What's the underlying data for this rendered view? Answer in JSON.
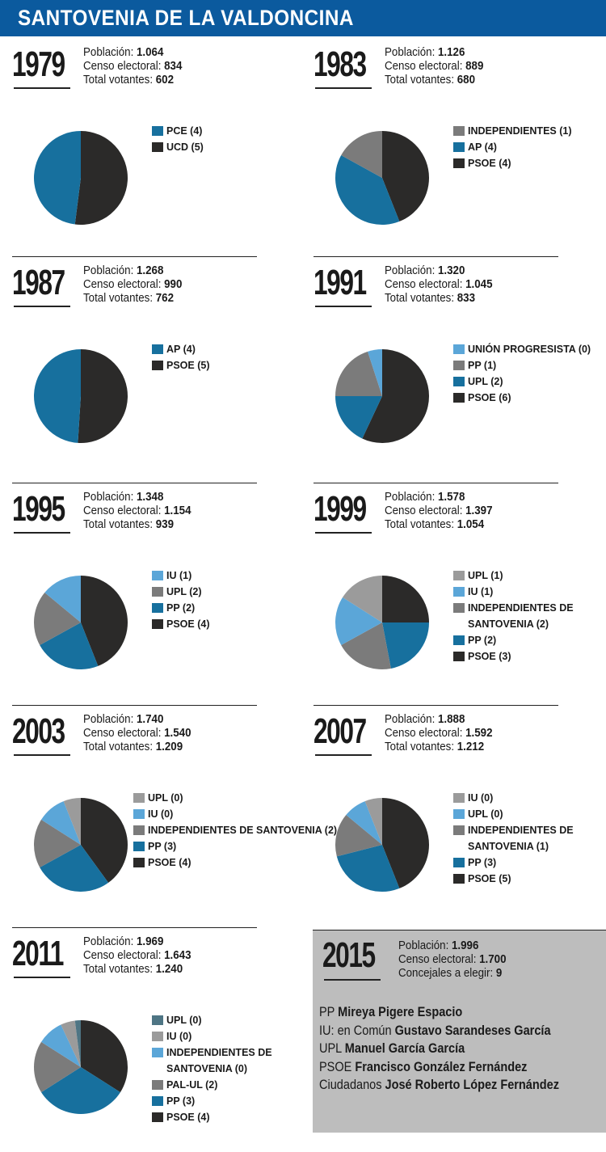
{
  "title": "SANTOVENIA DE LA VALDONCINA",
  "colors": {
    "dark": "#2b2a29",
    "blue": "#17709e",
    "gray": "#7b7b7b",
    "lightblue": "#5ba6d8",
    "lightgray": "#9b9b9b",
    "slate": "#4e7584"
  },
  "labels": {
    "poblacion": "Población: ",
    "censo": "Censo electoral: ",
    "votantes": "Total votantes: ",
    "concejales": "Concejales a elegir: "
  },
  "chart_data": [
    {
      "type": "pie",
      "title": "1979",
      "poblacion": "1.064",
      "censo": "834",
      "votantes": "602",
      "slices": [
        {
          "label": "PCE (4)",
          "value": 48,
          "color": "blue"
        },
        {
          "label": "UCD (5)",
          "value": 52,
          "color": "dark"
        }
      ]
    },
    {
      "type": "pie",
      "title": "1983",
      "poblacion": "1.126",
      "censo": "889",
      "votantes": "680",
      "slices": [
        {
          "label": "INDEPENDIENTES (1)",
          "value": 17,
          "color": "gray"
        },
        {
          "label": "AP (4)",
          "value": 39,
          "color": "blue"
        },
        {
          "label": "PSOE (4)",
          "value": 44,
          "color": "dark"
        }
      ]
    },
    {
      "type": "pie",
      "title": "1987",
      "poblacion": "1.268",
      "censo": "990",
      "votantes": "762",
      "slices": [
        {
          "label": "AP (4)",
          "value": 49,
          "color": "blue"
        },
        {
          "label": "PSOE (5)",
          "value": 51,
          "color": "dark"
        }
      ]
    },
    {
      "type": "pie",
      "title": "1991",
      "poblacion": "1.320",
      "censo": "1.045",
      "votantes": "833",
      "slices": [
        {
          "label": "UNIÓN PROGRESISTA (0)",
          "value": 5,
          "color": "lightblue"
        },
        {
          "label": "PP (1)",
          "value": 20,
          "color": "gray"
        },
        {
          "label": "UPL (2)",
          "value": 18,
          "color": "blue"
        },
        {
          "label": "PSOE (6)",
          "value": 57,
          "color": "dark"
        }
      ]
    },
    {
      "type": "pie",
      "title": "1995",
      "poblacion": "1.348",
      "censo": "1.154",
      "votantes": "939",
      "slices": [
        {
          "label": "IU (1)",
          "value": 14,
          "color": "lightblue"
        },
        {
          "label": "UPL (2)",
          "value": 19,
          "color": "gray"
        },
        {
          "label": "PP (2)",
          "value": 23,
          "color": "blue"
        },
        {
          "label": "PSOE (4)",
          "value": 44,
          "color": "dark"
        }
      ]
    },
    {
      "type": "pie",
      "title": "1999",
      "poblacion": "1.578",
      "censo": "1.397",
      "votantes": "1.054",
      "slices": [
        {
          "label": "UPL (1)",
          "value": 16,
          "color": "lightgray"
        },
        {
          "label": "IU (1)",
          "value": 17,
          "color": "lightblue"
        },
        {
          "label": "INDEPENDIENTES DE SANTOVENIA (2)",
          "value": 20,
          "color": "gray"
        },
        {
          "label": "PP (2)",
          "value": 22,
          "color": "blue"
        },
        {
          "label": "PSOE (3)",
          "value": 25,
          "color": "dark"
        }
      ]
    },
    {
      "type": "pie",
      "title": "2003",
      "poblacion": "1.740",
      "censo": "1.540",
      "votantes": "1.209",
      "slices": [
        {
          "label": "UPL (0)",
          "value": 6,
          "color": "lightgray"
        },
        {
          "label": "IU (0)",
          "value": 10,
          "color": "lightblue"
        },
        {
          "label": "INDEPENDIENTES DE SANTOVENIA (2)",
          "value": 17,
          "color": "gray"
        },
        {
          "label": "PP (3)",
          "value": 27,
          "color": "blue"
        },
        {
          "label": "PSOE (4)",
          "value": 40,
          "color": "dark"
        }
      ]
    },
    {
      "type": "pie",
      "title": "2007",
      "poblacion": "1.888",
      "censo": "1.592",
      "votantes": "1.212",
      "slices": [
        {
          "label": "IU (0)",
          "value": 6,
          "color": "lightgray"
        },
        {
          "label": "UPL (0)",
          "value": 8,
          "color": "lightblue"
        },
        {
          "label": "INDEPENDIENTES DE SANTOVENIA (1)",
          "value": 15,
          "color": "gray"
        },
        {
          "label": "PP (3)",
          "value": 27,
          "color": "blue"
        },
        {
          "label": "PSOE (5)",
          "value": 44,
          "color": "dark"
        }
      ]
    },
    {
      "type": "pie",
      "title": "2011",
      "poblacion": "1.969",
      "censo": "1.643",
      "votantes": "1.240",
      "slices": [
        {
          "label": "UPL (0)",
          "value": 2,
          "color": "slate"
        },
        {
          "label": "IU (0)",
          "value": 5,
          "color": "lightgray"
        },
        {
          "label": "INDEPENDIENTES DE SANTOVENIA (0)",
          "value": 9,
          "color": "lightblue"
        },
        {
          "label": "PAL-UL (2)",
          "value": 18,
          "color": "gray"
        },
        {
          "label": "PP (3)",
          "value": 32,
          "color": "blue"
        },
        {
          "label": "PSOE (4)",
          "value": 34,
          "color": "dark"
        }
      ]
    }
  ],
  "y2015": {
    "year": "2015",
    "poblacion": "1.996",
    "censo": "1.700",
    "concejales": "9",
    "candidates": [
      {
        "party": "PP ",
        "name": "Mireya Pigere Espacio"
      },
      {
        "party": "IU: en Común ",
        "name": "Gustavo Sarandeses García"
      },
      {
        "party": "UPL ",
        "name": "Manuel García García"
      },
      {
        "party": "PSOE ",
        "name": "Francisco González Fernández"
      },
      {
        "party": "Ciudadanos ",
        "name": "José Roberto López Fernández"
      }
    ]
  }
}
